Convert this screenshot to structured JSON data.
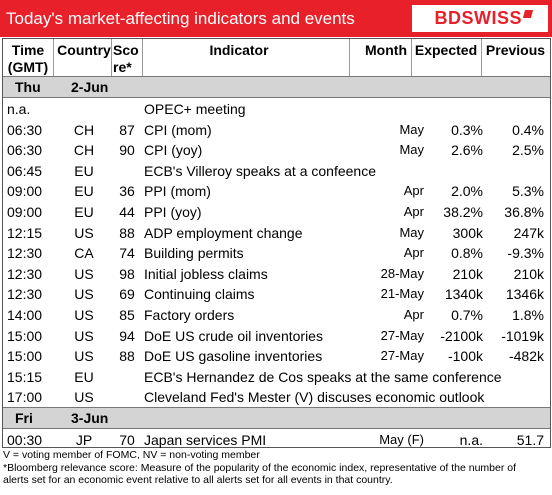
{
  "header": {
    "title": "Today's market-affecting indicators and events",
    "logo_text": "BDSWISS"
  },
  "columns": {
    "time": "Time (GMT)",
    "time_line1": "Time",
    "time_line2": "(GMT)",
    "country": "Country",
    "score_line1": "Sco",
    "score_line2": "re*",
    "indicator": "Indicator",
    "month": "Month",
    "expected": "Expected",
    "previous": "Previous"
  },
  "days": [
    {
      "name": "Thu",
      "date": "2-Jun",
      "rows": [
        {
          "time": "n.a.",
          "country": "",
          "score": "",
          "indicator": "OPEC+ meeting",
          "month": "",
          "expected": "",
          "previous": ""
        },
        {
          "time": "06:30",
          "country": "CH",
          "score": "87",
          "indicator": "CPI (mom)",
          "month": "May",
          "expected": "0.3%",
          "previous": "0.4%"
        },
        {
          "time": "06:30",
          "country": "CH",
          "score": "90",
          "indicator": "CPI (yoy)",
          "month": "May",
          "expected": "2.6%",
          "previous": "2.5%"
        },
        {
          "time": "06:45",
          "country": "EU",
          "score": "",
          "indicator": "ECB's Villeroy speaks at a confeence",
          "month": "",
          "expected": "",
          "previous": ""
        },
        {
          "time": "09:00",
          "country": "EU",
          "score": "36",
          "indicator": "PPI (mom)",
          "month": "Apr",
          "expected": "2.0%",
          "previous": "5.3%"
        },
        {
          "time": "09:00",
          "country": "EU",
          "score": "44",
          "indicator": "PPI (yoy)",
          "month": "Apr",
          "expected": "38.2%",
          "previous": "36.8%"
        },
        {
          "time": "12:15",
          "country": "US",
          "score": "88",
          "indicator": "ADP employment change",
          "month": "May",
          "expected": "300k",
          "previous": "247k"
        },
        {
          "time": "12:30",
          "country": "CA",
          "score": "74",
          "indicator": "Building permits",
          "month": "Apr",
          "expected": "0.8%",
          "previous": "-9.3%"
        },
        {
          "time": "12:30",
          "country": "US",
          "score": "98",
          "indicator": "Initial jobless claims",
          "month": "28-May",
          "expected": "210k",
          "previous": "210k"
        },
        {
          "time": "12:30",
          "country": "US",
          "score": "69",
          "indicator": "Continuing claims",
          "month": "21-May",
          "expected": "1340k",
          "previous": "1346k"
        },
        {
          "time": "14:00",
          "country": "US",
          "score": "85",
          "indicator": "Factory orders",
          "month": "Apr",
          "expected": "0.7%",
          "previous": "1.8%"
        },
        {
          "time": "15:00",
          "country": "US",
          "score": "94",
          "indicator": "DoE US crude oil inventories",
          "month": "27-May",
          "expected": "-2100k",
          "previous": "-1019k"
        },
        {
          "time": "15:00",
          "country": "US",
          "score": "88",
          "indicator": "DoE US gasoline inventories",
          "month": "27-May",
          "expected": "-100k",
          "previous": "-482k"
        },
        {
          "time": "15:15",
          "country": "EU",
          "score": "",
          "indicator": "ECB's Hernandez de Cos speaks at the same conference",
          "month": "",
          "expected": "",
          "previous": ""
        },
        {
          "time": "17:00",
          "country": "US",
          "score": "",
          "indicator": "Cleveland Fed's Mester (V) discuses economic outlook",
          "month": "",
          "expected": "",
          "previous": ""
        }
      ]
    },
    {
      "name": "Fri",
      "date": "3-Jun",
      "rows": [
        {
          "time": "00:30",
          "country": "JP",
          "score": "70",
          "indicator": "Japan services PMI",
          "month": "May (F)",
          "expected": "n.a.",
          "previous": "51.7"
        }
      ]
    }
  ],
  "footnotes": [
    "V = voting member of FOMC, NV = non-voting member",
    "*Bloomberg relevance score:  Measure of the popularity of the economic index, representative of the number of",
    "alerts set for an economic event relative to all alerts set for all events in that country."
  ],
  "colors": {
    "brand_red": "#e8202a",
    "day_bar_gray": "#d4d4d4"
  }
}
